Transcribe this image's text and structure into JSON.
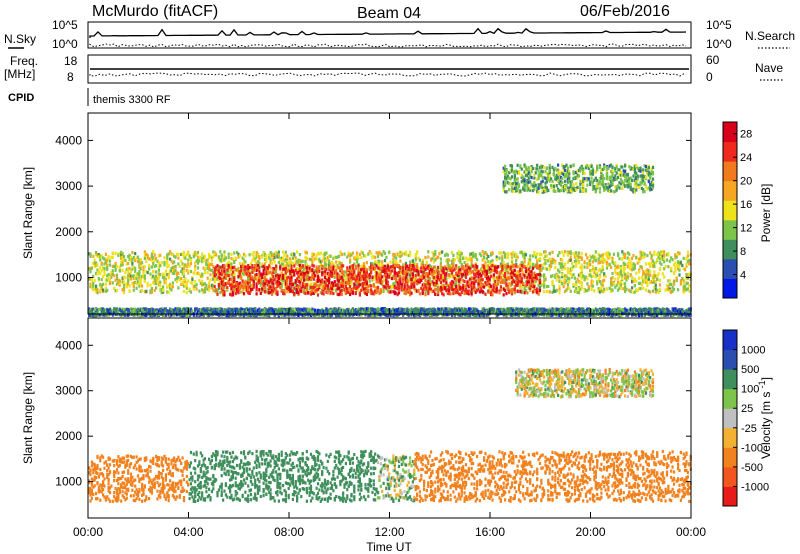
{
  "header": {
    "site": "McMurdo (fitACF)",
    "beam": "Beam 04",
    "date": "06/Feb/2016"
  },
  "status_panel": {
    "nsky_label": "N.Sky",
    "nsearch_label": "N.Search",
    "noise_ticks": [
      "10^5",
      "10^0"
    ],
    "freq_label_top": "Freq.",
    "freq_label_bottom": "[MHz]",
    "freq_ticks": [
      "18",
      "8"
    ],
    "nave_label": "Nave",
    "nave_ticks": [
      "60",
      "0"
    ],
    "cpid_label": "CPID",
    "cpid_value": "themis 3300 RF"
  },
  "colors": {
    "power_scale": [
      "#0018e6",
      "#2a4fb0",
      "#3f8f5c",
      "#7cc44a",
      "#f0e21a",
      "#f6a623",
      "#f07a1c",
      "#ee2a1e",
      "#d9001b"
    ],
    "velocity_scale": [
      "#e81a1a",
      "#f2561e",
      "#f2821e",
      "#f4b030",
      "#c0c0c0",
      "#7cc44a",
      "#3f8f5c",
      "#2a4fb0",
      "#1830c8"
    ],
    "ground": "#b0b0b0"
  },
  "chart_data": [
    {
      "type": "heatmap",
      "panel": "power",
      "xlabel": "",
      "ylabel": "Slant Range [km]",
      "ylim": [
        200,
        4600
      ],
      "x_ticks": [
        "00:00",
        "04:00",
        "08:00",
        "12:00",
        "16:00",
        "20:00",
        "00:00"
      ],
      "y_ticks": [
        1000,
        2000,
        3000,
        4000
      ],
      "colorbar": {
        "label": "Power [dB]",
        "ticks": [
          4,
          8,
          12,
          16,
          20,
          24,
          28
        ],
        "range": [
          0,
          30
        ]
      },
      "echo_bands": [
        {
          "t_start": 0.0,
          "t_end": 24.0,
          "range_low": 700,
          "range_high": 1600,
          "mean_power": 14
        },
        {
          "t_start": 5.0,
          "t_end": 18.0,
          "range_low": 650,
          "range_high": 1300,
          "mean_power": 26
        },
        {
          "t_start": 0.0,
          "t_end": 24.0,
          "range_low": 200,
          "range_high": 350,
          "mean_power": 6
        },
        {
          "t_start": 16.5,
          "t_end": 22.5,
          "range_low": 2900,
          "range_high": 3500,
          "mean_power": 10
        }
      ]
    },
    {
      "type": "heatmap",
      "panel": "velocity",
      "xlabel": "Time UT",
      "ylabel": "Slant Range [km]",
      "ylim": [
        200,
        4600
      ],
      "x_ticks": [
        "00:00",
        "04:00",
        "08:00",
        "12:00",
        "16:00",
        "20:00",
        "00:00"
      ],
      "y_ticks": [
        1000,
        2000,
        3000,
        4000
      ],
      "colorbar": {
        "label": "Velocity [m s^-1]",
        "ticks": [
          1000,
          500,
          100,
          25,
          -25,
          -100,
          -500,
          -1000
        ]
      },
      "echo_bands": [
        {
          "t_start": 0.0,
          "t_end": 4.0,
          "range_low": 600,
          "range_high": 1600,
          "mean_velocity": -300
        },
        {
          "t_start": 4.0,
          "t_end": 11.5,
          "range_low": 600,
          "range_high": 1700,
          "mean_velocity": 300
        },
        {
          "t_start": 11.5,
          "t_end": 13.0,
          "range_low": 600,
          "range_high": 1600,
          "mean_velocity": 50
        },
        {
          "t_start": 13.0,
          "t_end": 24.0,
          "range_low": 600,
          "range_high": 1700,
          "mean_velocity": -300
        },
        {
          "t_start": 17.0,
          "t_end": 22.5,
          "range_low": 2900,
          "range_high": 3500,
          "mean_velocity": 0
        }
      ]
    }
  ]
}
